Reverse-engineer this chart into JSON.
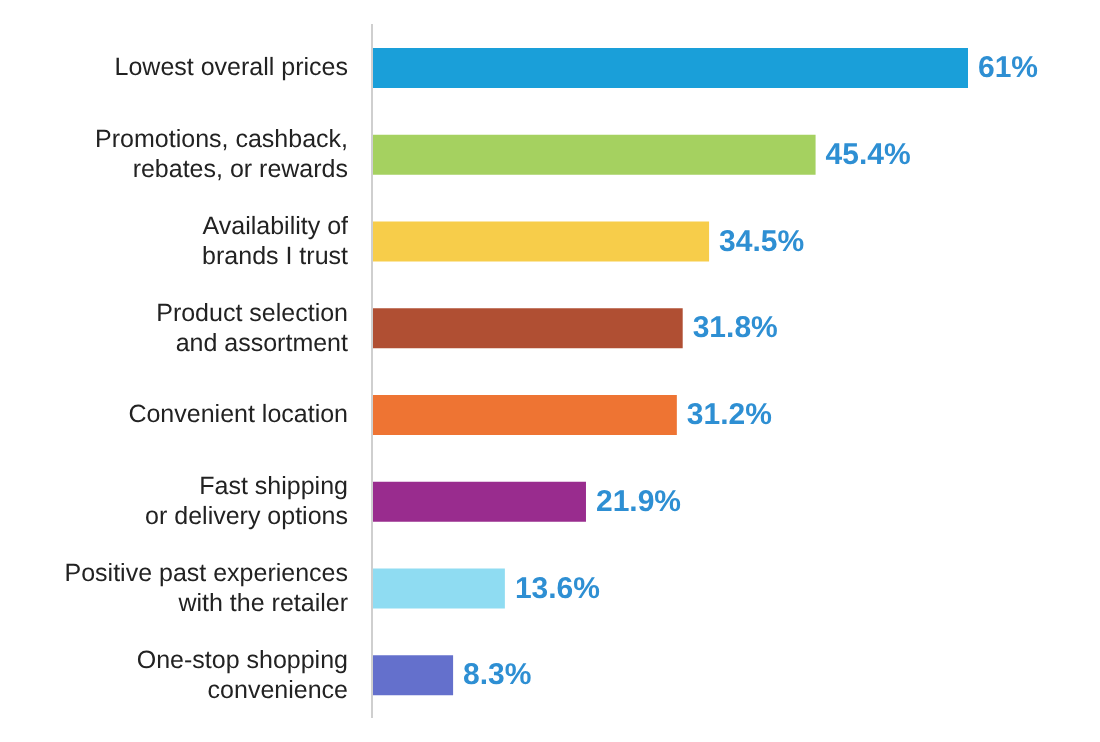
{
  "chart_data": {
    "type": "bar",
    "orientation": "horizontal",
    "categories": [
      "Lowest overall prices",
      "Promotions, cashback,\nrebates, or rewards",
      "Availability of\nbrands I trust",
      "Product selection\nand assortment",
      "Convenient location",
      "Fast shipping\nor delivery options",
      "Positive past experiences\nwith the retailer",
      "One-stop shopping\nconvenience"
    ],
    "values": [
      61,
      45.4,
      34.5,
      31.8,
      31.2,
      21.9,
      13.6,
      8.3
    ],
    "colors": [
      "#1a9fd9",
      "#a5d160",
      "#f7cd4a",
      "#b04f33",
      "#ee7433",
      "#992c8e",
      "#8fdcf2",
      "#6470cc"
    ],
    "value_labels": [
      "61%",
      "45.4%",
      "34.5%",
      "31.8%",
      "31.2%",
      "21.9%",
      "13.6%",
      "8.3%"
    ],
    "tick_labels": "y"
  }
}
